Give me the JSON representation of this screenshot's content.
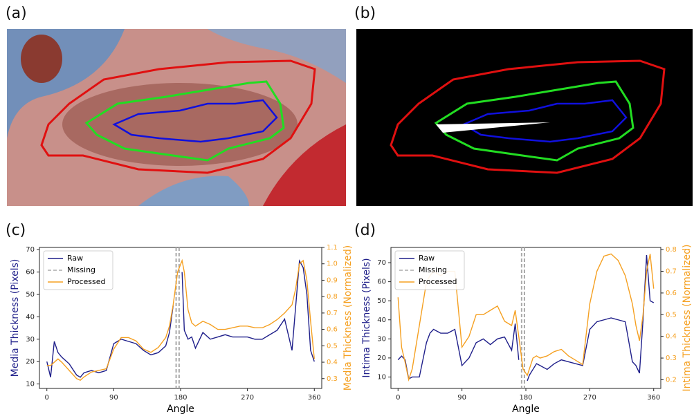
{
  "panels": [
    "(a)",
    "(b)"
  ],
  "chart_data": [
    {
      "type": "line",
      "panel_label": "(c)",
      "xlabel": "Angle",
      "ylabel": "Media Thickness (Pixels)",
      "y2label": "Media Thickness (Normalized)",
      "xlim": [
        -10,
        370
      ],
      "xticks": [
        0,
        90,
        180,
        270,
        360
      ],
      "ylim": [
        8,
        71
      ],
      "yticks": [
        10,
        20,
        30,
        40,
        50,
        60,
        70
      ],
      "y2lim": [
        0.24,
        1.1
      ],
      "y2ticks": [
        0.3,
        0.4,
        0.5,
        0.6,
        0.7,
        0.8,
        0.9,
        {
          "value": 1,
          "label": "1.0"
        },
        1.1
      ],
      "legend": "upper left",
      "x": [
        0,
        5,
        10,
        15,
        20,
        30,
        40,
        45,
        50,
        60,
        70,
        80,
        90,
        100,
        110,
        120,
        130,
        140,
        150,
        160,
        165,
        170,
        176,
        182,
        185,
        190,
        195,
        200,
        210,
        220,
        230,
        240,
        250,
        260,
        270,
        280,
        290,
        300,
        310,
        320,
        330,
        335,
        340,
        345,
        350,
        355,
        360
      ],
      "series": [
        {
          "name": "Raw",
          "color": "#1f1f8a",
          "values": [
            20,
            13,
            29,
            24,
            22,
            19,
            14,
            13,
            15,
            16,
            15,
            16,
            28,
            30,
            29,
            28,
            25,
            23,
            24,
            27,
            33,
            45,
            null,
            60,
            34,
            30,
            31,
            26,
            33,
            30,
            31,
            32,
            31,
            31,
            31,
            30,
            30,
            32,
            34,
            39,
            25,
            45,
            65,
            62,
            50,
            25,
            20
          ]
        },
        {
          "name": "Missing",
          "color": "#aaaaaa",
          "x": [
            174,
            178
          ],
          "style": "dashed"
        },
        {
          "name": "Processed",
          "color": "#f5a021",
          "axis": "y2",
          "values": [
            0.38,
            0.38,
            0.4,
            0.42,
            0.4,
            0.35,
            0.3,
            0.29,
            0.31,
            0.34,
            0.35,
            0.36,
            0.48,
            0.55,
            0.55,
            0.53,
            0.48,
            0.46,
            0.49,
            0.55,
            0.62,
            0.75,
            0.95,
            1.02,
            0.95,
            0.72,
            0.64,
            0.62,
            0.65,
            0.63,
            0.6,
            0.6,
            0.61,
            0.62,
            0.62,
            0.61,
            0.61,
            0.63,
            0.66,
            0.7,
            0.75,
            0.85,
            1.0,
            1.02,
            0.9,
            0.65,
            0.42
          ]
        }
      ]
    },
    {
      "type": "line",
      "panel_label": "(d)",
      "xlabel": "Angle",
      "ylabel": "Intima Thickness (Pixels)",
      "y2label": "Intima Thickness (Normalized)",
      "xlim": [
        -10,
        370
      ],
      "xticks": [
        0,
        90,
        180,
        270,
        360
      ],
      "ylim": [
        4,
        78
      ],
      "yticks": [
        10,
        20,
        30,
        40,
        50,
        60,
        70
      ],
      "y2lim": [
        0.16,
        0.81
      ],
      "y2ticks": [
        0.2,
        0.3,
        0.4,
        0.5,
        0.6,
        0.7,
        0.8
      ],
      "legend": "upper left",
      "x": [
        0,
        5,
        10,
        15,
        20,
        30,
        40,
        45,
        50,
        60,
        70,
        80,
        90,
        100,
        110,
        120,
        130,
        140,
        150,
        160,
        165,
        170,
        176,
        182,
        185,
        190,
        195,
        200,
        210,
        220,
        230,
        240,
        250,
        260,
        270,
        280,
        290,
        300,
        310,
        320,
        330,
        335,
        340,
        345,
        350,
        355,
        360
      ],
      "series": [
        {
          "name": "Raw",
          "color": "#1f1f8a",
          "values": [
            19,
            21,
            19,
            9,
            10,
            10,
            28,
            33,
            35,
            33,
            33,
            35,
            16,
            20,
            28,
            30,
            27,
            30,
            31,
            24,
            38,
            19,
            null,
            8,
            11,
            14,
            17,
            16,
            14,
            17,
            19,
            18,
            17,
            16,
            35,
            39,
            40,
            41,
            40,
            39,
            18,
            16,
            12,
            40,
            74,
            50,
            49
          ]
        },
        {
          "name": "Missing",
          "color": "#aaaaaa",
          "x": [
            174,
            178
          ],
          "style": "dashed"
        },
        {
          "name": "Processed",
          "color": "#f5a021",
          "axis": "y2",
          "values": [
            0.58,
            0.35,
            0.28,
            0.2,
            0.25,
            0.45,
            0.65,
            0.68,
            0.7,
            0.68,
            0.7,
            0.7,
            0.35,
            0.4,
            0.5,
            0.5,
            0.52,
            0.54,
            0.47,
            0.45,
            0.52,
            0.4,
            0.25,
            0.22,
            0.25,
            0.3,
            0.31,
            0.3,
            0.31,
            0.33,
            0.34,
            0.31,
            0.29,
            0.27,
            0.55,
            0.7,
            0.77,
            0.78,
            0.75,
            0.68,
            0.55,
            0.45,
            0.38,
            0.5,
            0.7,
            0.78,
            0.62
          ]
        }
      ]
    }
  ]
}
